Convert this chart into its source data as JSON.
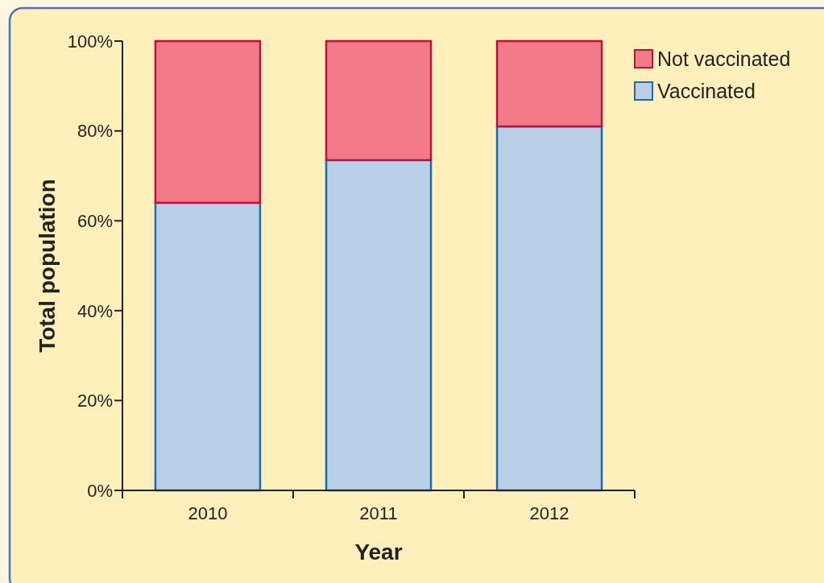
{
  "chart_data": {
    "type": "bar",
    "stacked": true,
    "xlabel": "Year",
    "ylabel": "Total population",
    "categories": [
      "2010",
      "2011",
      "2012"
    ],
    "series": [
      {
        "name": "Vaccinated",
        "color": "#b9cfe8",
        "values": [
          64,
          73.5,
          81
        ]
      },
      {
        "name": "Not vaccinated",
        "color": "#f27b8a",
        "values": [
          36,
          26.5,
          19
        ]
      }
    ],
    "ylim": [
      0,
      100
    ],
    "yticks": [
      {
        "value": 0,
        "label": "0%"
      },
      {
        "value": 20,
        "label": "20%"
      },
      {
        "value": 40,
        "label": "40%"
      },
      {
        "value": 60,
        "label": "60%"
      },
      {
        "value": 80,
        "label": "80%"
      },
      {
        "value": 100,
        "label": "100%"
      }
    ],
    "legend": "top right",
    "grid": false
  }
}
